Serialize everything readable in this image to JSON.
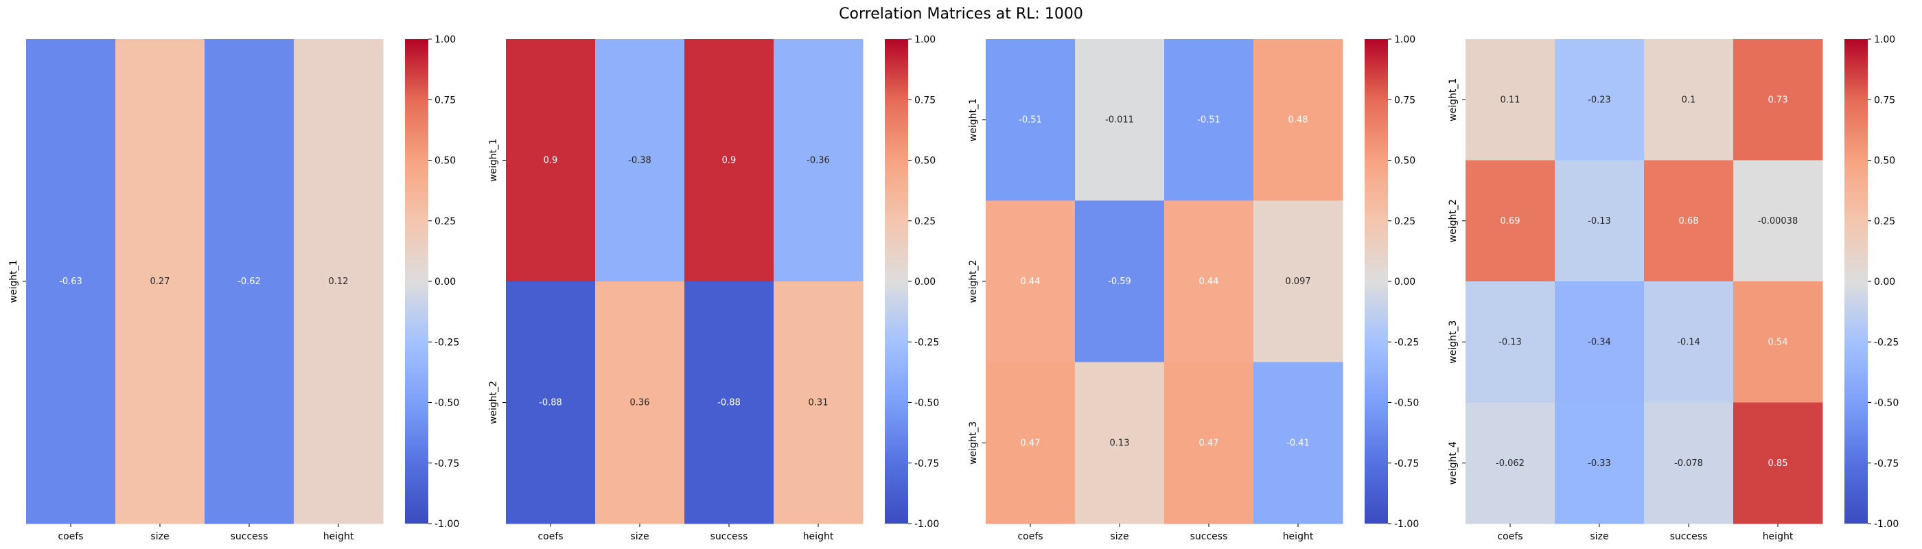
{
  "chart_data": {
    "title": "Correlation Matrices at RL: 1000",
    "type": "heatmap",
    "colormap": "coolwarm",
    "vmin": -1.0,
    "vmax": 1.0,
    "colorbar_ticks": [
      "-1.00",
      "-0.75",
      "-0.50",
      "-0.25",
      "0.00",
      "0.25",
      "0.50",
      "0.75",
      "1.00"
    ],
    "panels": [
      {
        "columns": [
          "coefs",
          "size",
          "success",
          "height"
        ],
        "rows": [
          "weight_1"
        ],
        "values": [
          [
            -0.63,
            0.27,
            -0.62,
            0.12
          ]
        ],
        "labels": [
          [
            "-0.63",
            "0.27",
            "-0.62",
            "0.12"
          ]
        ]
      },
      {
        "columns": [
          "coefs",
          "size",
          "success",
          "height"
        ],
        "rows": [
          "weight_1",
          "weight_2"
        ],
        "values": [
          [
            0.9,
            -0.38,
            0.9,
            -0.36
          ],
          [
            -0.88,
            0.36,
            -0.88,
            0.31
          ]
        ],
        "labels": [
          [
            "0.9",
            "-0.38",
            "0.9",
            "-0.36"
          ],
          [
            "-0.88",
            "0.36",
            "-0.88",
            "0.31"
          ]
        ]
      },
      {
        "columns": [
          "coefs",
          "size",
          "success",
          "height"
        ],
        "rows": [
          "weight_1",
          "weight_2",
          "weight_3"
        ],
        "values": [
          [
            -0.51,
            -0.011,
            -0.51,
            0.48
          ],
          [
            0.44,
            -0.59,
            0.44,
            0.097
          ],
          [
            0.47,
            0.13,
            0.47,
            -0.41
          ]
        ],
        "labels": [
          [
            "-0.51",
            "-0.011",
            "-0.51",
            "0.48"
          ],
          [
            "0.44",
            "-0.59",
            "0.44",
            "0.097"
          ],
          [
            "0.47",
            "0.13",
            "0.47",
            "-0.41"
          ]
        ]
      },
      {
        "columns": [
          "coefs",
          "size",
          "success",
          "height"
        ],
        "rows": [
          "weight_1",
          "weight_2",
          "weight_3",
          "weight_4"
        ],
        "values": [
          [
            0.11,
            -0.23,
            0.1,
            0.73
          ],
          [
            0.69,
            -0.13,
            0.68,
            -0.00038
          ],
          [
            -0.13,
            -0.34,
            -0.14,
            0.54
          ],
          [
            -0.062,
            -0.33,
            -0.078,
            0.85
          ]
        ],
        "labels": [
          [
            "0.11",
            "-0.23",
            "0.1",
            "0.73"
          ],
          [
            "0.69",
            "-0.13",
            "0.68",
            "-0.00038"
          ],
          [
            "-0.13",
            "-0.34",
            "-0.14",
            "0.54"
          ],
          [
            "-0.062",
            "-0.33",
            "-0.078",
            "0.85"
          ]
        ]
      }
    ]
  }
}
